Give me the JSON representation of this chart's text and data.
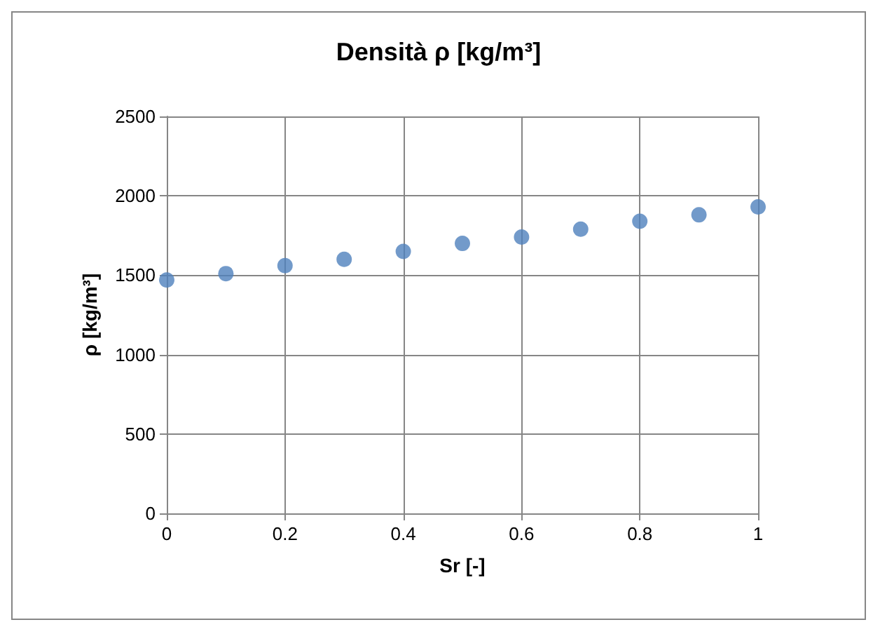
{
  "chart_data": {
    "type": "scatter",
    "title": "Densità ρ [kg/m³]",
    "xlabel": "Sr [-]",
    "ylabel": "ρ [kg/m³]",
    "x": [
      0,
      0.1,
      0.2,
      0.3,
      0.4,
      0.5,
      0.6,
      0.7,
      0.8,
      0.9,
      1
    ],
    "series": [
      {
        "color": "#4f81bd",
        "values": [
          1470,
          1510,
          1560,
          1600,
          1650,
          1700,
          1740,
          1790,
          1840,
          1880,
          1930
        ]
      }
    ],
    "xlim": [
      0,
      1
    ],
    "xticks": [
      0,
      0.2,
      0.4,
      0.6,
      0.8,
      1
    ],
    "ylim": [
      0,
      2500
    ],
    "yticks": [
      0,
      500,
      1000,
      1500,
      2000,
      2500
    ],
    "grid": true,
    "marker": "circle"
  }
}
